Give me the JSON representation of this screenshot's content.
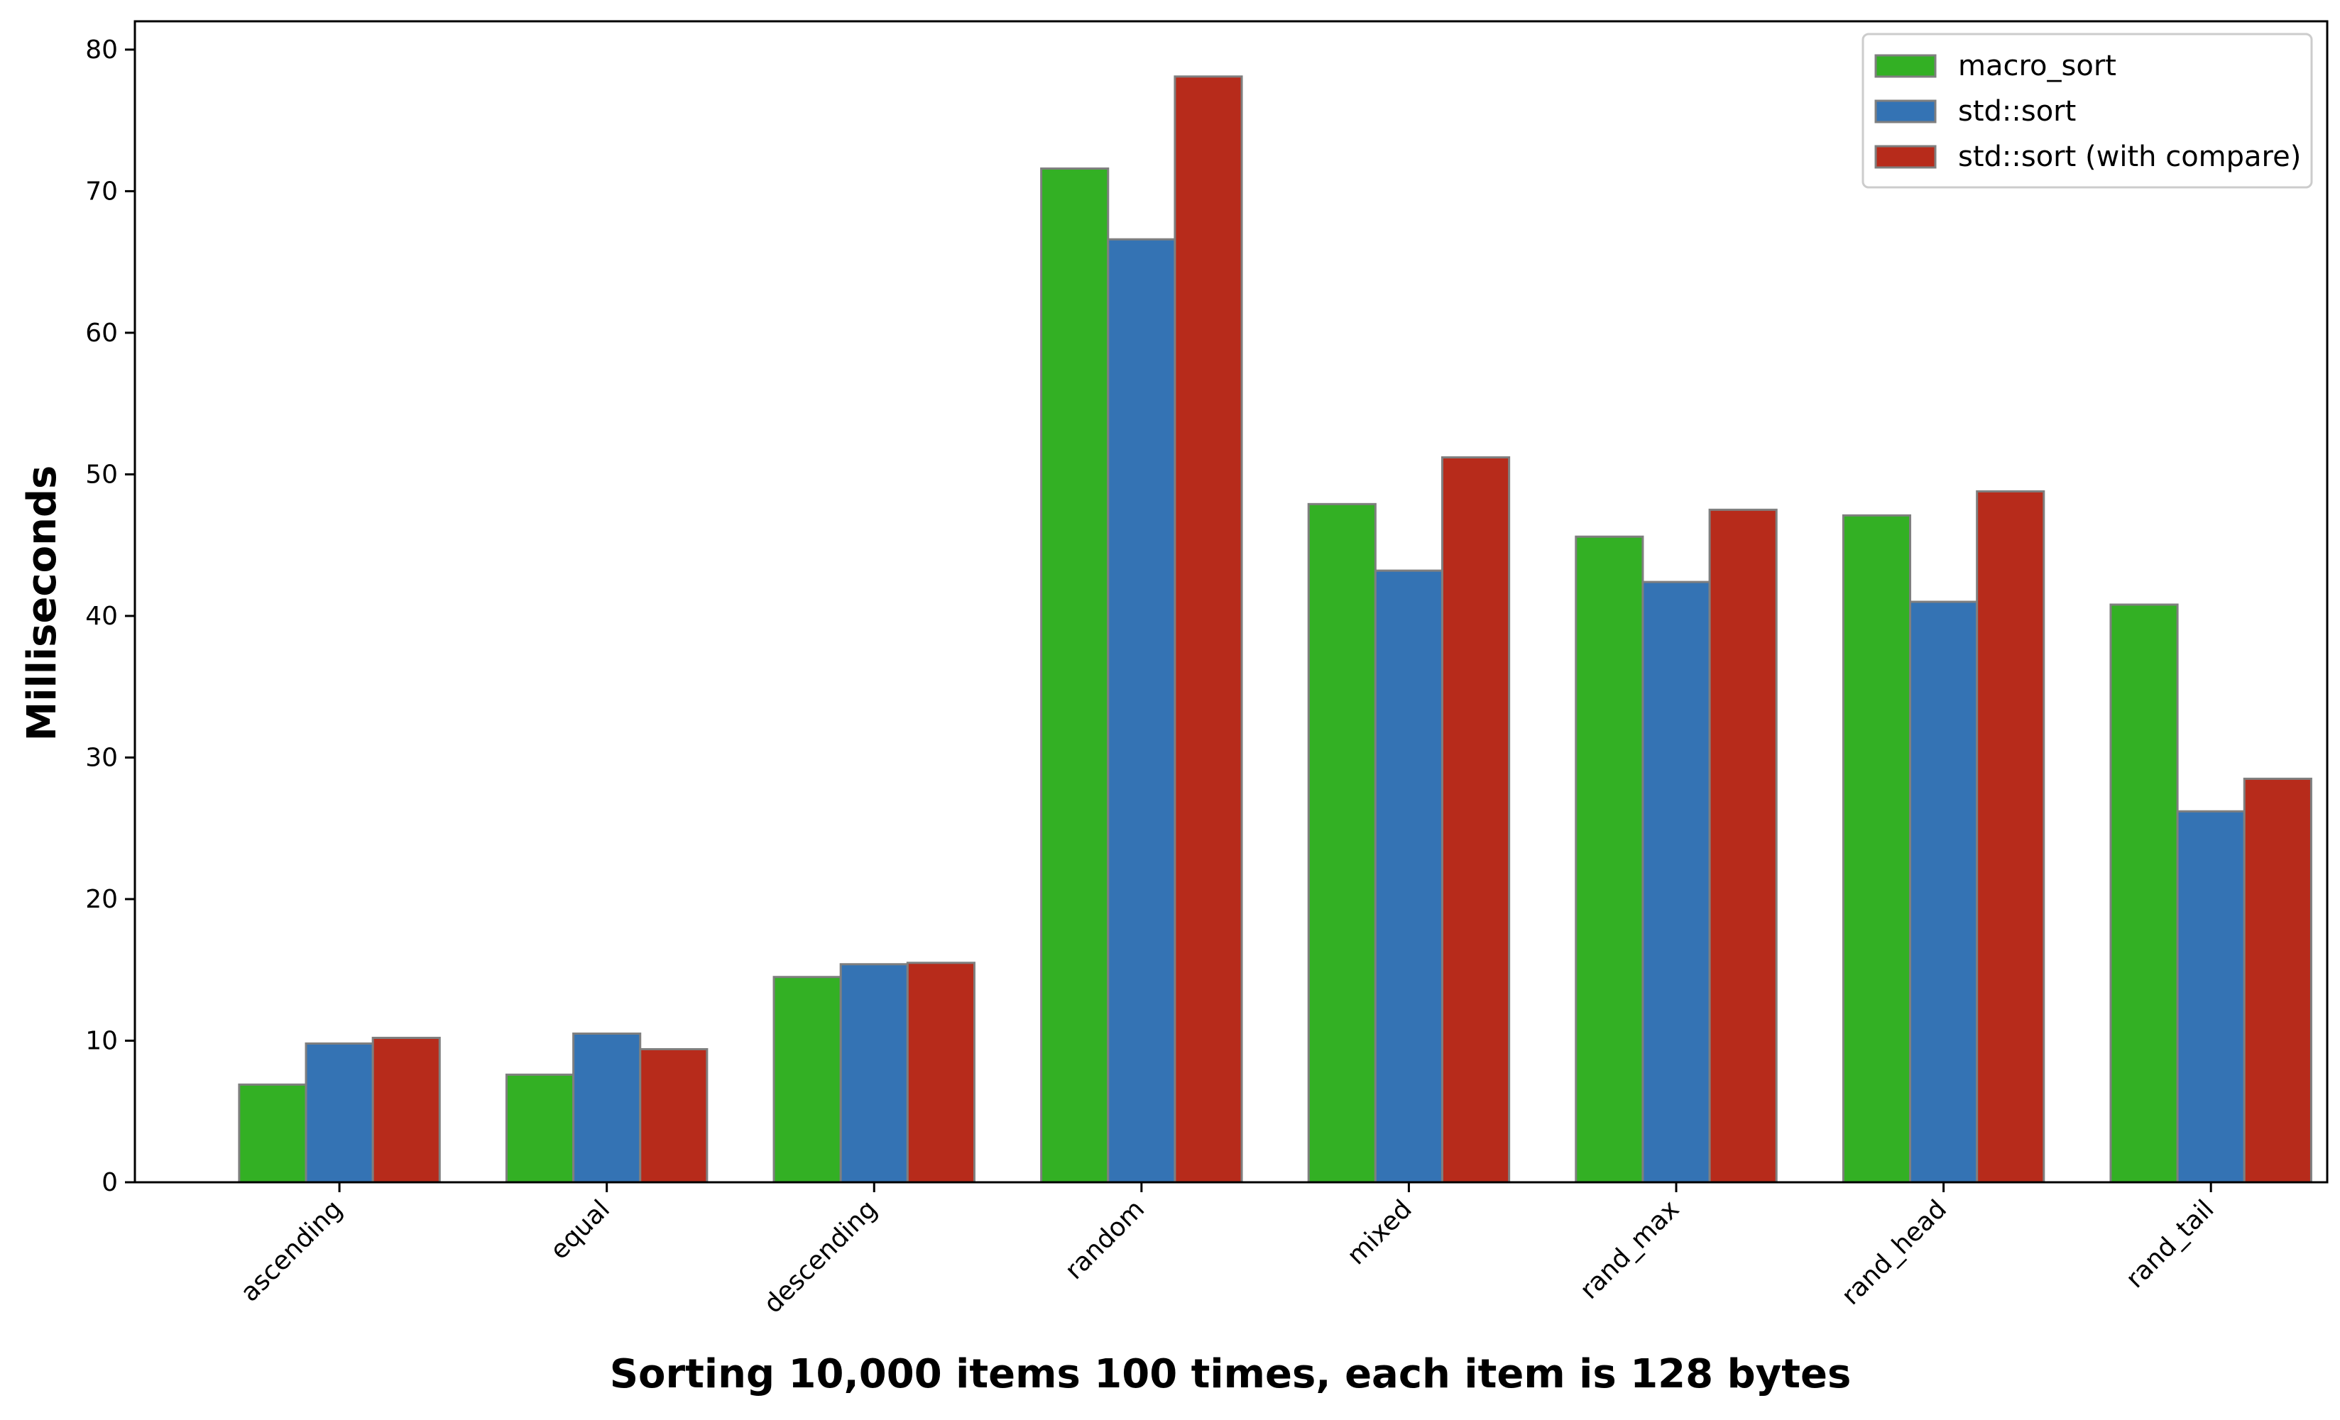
{
  "chart_data": {
    "type": "bar",
    "title": "",
    "xlabel": "Sorting 10,000 items 100 times, each item is 128 bytes",
    "ylabel": "Milliseconds",
    "categories": [
      "ascending",
      "equal",
      "descending",
      "random",
      "mixed",
      "rand_max",
      "rand_head",
      "rand_tail"
    ],
    "series": [
      {
        "name": "macro_sort",
        "color": "#33b024",
        "values": [
          6.9,
          7.6,
          14.5,
          71.6,
          47.9,
          45.6,
          47.1,
          40.8
        ]
      },
      {
        "name": "std::sort",
        "color": "#3473b4",
        "values": [
          9.8,
          10.5,
          15.4,
          66.6,
          43.2,
          42.4,
          41.0,
          26.2
        ]
      },
      {
        "name": "std::sort (with compare)",
        "color": "#b72b1b",
        "values": [
          10.2,
          9.4,
          15.5,
          78.1,
          51.2,
          47.5,
          48.8,
          28.5
        ]
      }
    ],
    "ylim": [
      0,
      82
    ],
    "yticks": [
      0,
      10,
      20,
      30,
      40,
      50,
      60,
      70,
      80
    ],
    "grid": false,
    "legend": "top-right"
  }
}
